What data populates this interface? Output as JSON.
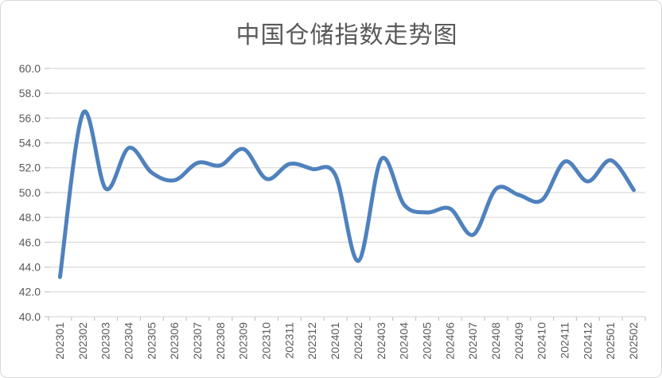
{
  "chart_data": {
    "type": "line",
    "title": "中国仓储指数走势图",
    "categories": [
      "202301",
      "202302",
      "202303",
      "202304",
      "202305",
      "202306",
      "202307",
      "202308",
      "202309",
      "202310",
      "202311",
      "202312",
      "202401",
      "202402",
      "202403",
      "202404",
      "202405",
      "202406",
      "202407",
      "202408",
      "202409",
      "202410",
      "202411",
      "202412",
      "202501",
      "202502"
    ],
    "values": [
      43.2,
      56.4,
      50.3,
      53.6,
      51.6,
      51.0,
      52.4,
      52.2,
      53.5,
      51.1,
      52.3,
      51.9,
      51.4,
      44.5,
      52.7,
      49.0,
      48.4,
      48.7,
      46.6,
      50.3,
      49.8,
      49.4,
      52.5,
      50.9,
      52.6,
      50.2
    ],
    "ylim": [
      40.0,
      60.0
    ],
    "ytick_step": 2.0,
    "ytick_labels": [
      "60.0",
      "58.0",
      "56.0",
      "54.0",
      "52.0",
      "50.0",
      "48.0",
      "46.0",
      "44.0",
      "42.0",
      "40.0"
    ],
    "xlabel": "",
    "ylabel": "",
    "grid": "horizontal",
    "legend": "none",
    "smoothed": true,
    "x_label_rotation_deg": 90,
    "style": {
      "line_color": "#4F81BD",
      "grid_color": "#D9D9D9",
      "axis_color": "#C6C6C6",
      "text_color": "#595959",
      "title_color": "#595959",
      "border_color": "#D9D9D9",
      "background": "#FFFFFF"
    }
  }
}
